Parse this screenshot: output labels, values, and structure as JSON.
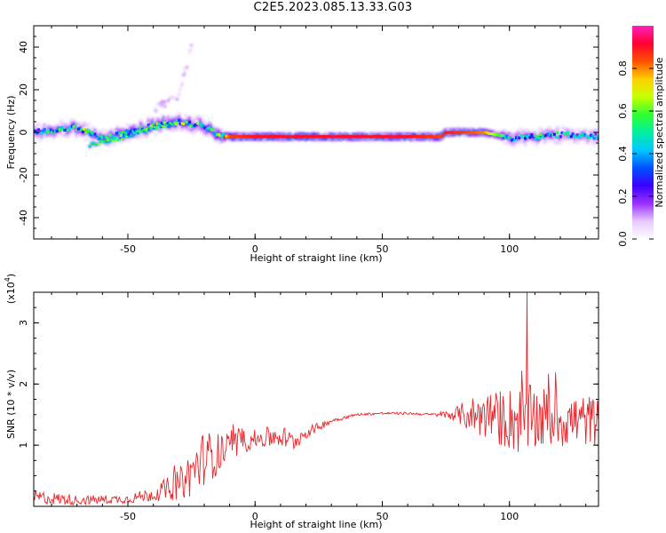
{
  "title": "C2E5.2023.085.13.33.G03",
  "colors": {
    "snr_line": "#e8262b",
    "axis": "#000000",
    "colormap": [
      "#ffffff",
      "#e8c8ff",
      "#9b30ff",
      "#3a00ff",
      "#0050ff",
      "#00c8ff",
      "#00f0a0",
      "#30ff30",
      "#c8ff00",
      "#ffd000",
      "#ff5000",
      "#ff0030",
      "#ff20c0"
    ]
  },
  "chart_data": [
    {
      "id": "spectrogram",
      "type": "heatmap",
      "xlabel": "Height of straight line (km)",
      "ylabel": "Frequency (Hz)",
      "xlim": [
        -87,
        135
      ],
      "ylim": [
        -50,
        50
      ],
      "x_ticks": [
        -50,
        0,
        50,
        100
      ],
      "y_ticks": [
        -40,
        -20,
        0,
        20,
        40
      ],
      "colorbar": {
        "label": "Normalized spectral amplitude",
        "range": [
          0,
          1
        ],
        "ticks": [
          0.0,
          0.2,
          0.4,
          0.6,
          0.8
        ]
      },
      "ridge": {
        "description_points_x": [
          -87,
          -70,
          -60,
          -50,
          -40,
          -30,
          -20,
          -15,
          -10,
          0,
          20,
          40,
          60,
          73,
          75,
          90,
          98,
          100,
          110,
          120,
          135
        ],
        "frequency_y": [
          0,
          2,
          -3,
          0,
          3,
          5,
          3,
          -1,
          -2,
          -2,
          -2,
          -2,
          -2,
          -2,
          0,
          0,
          -2,
          -3,
          -2,
          -1,
          -2
        ],
        "amplitude": [
          0.35,
          0.5,
          0.45,
          0.5,
          0.55,
          0.55,
          0.45,
          0.5,
          0.85,
          0.9,
          0.9,
          0.9,
          0.9,
          0.85,
          0.9,
          0.8,
          0.5,
          0.4,
          0.45,
          0.4,
          0.35
        ]
      },
      "secondary_branch": {
        "x": [
          -65,
          -50,
          -40,
          -30
        ],
        "frequency_y": [
          -6,
          -2,
          2,
          4
        ]
      },
      "faint_branch": {
        "x": [
          -40,
          -30,
          -25
        ],
        "frequency_y": [
          10,
          18,
          40
        ]
      }
    },
    {
      "id": "snr",
      "type": "line",
      "xlabel": "Height of straight line (km)",
      "ylabel": "SNR (10 * v/v)",
      "y_multiplier_label": "(x10",
      "y_multiplier_exp": "4",
      "xlim": [
        -87,
        135
      ],
      "ylim": [
        0,
        3.5
      ],
      "x_ticks": [
        -50,
        0,
        50,
        100
      ],
      "y_ticks": [
        1,
        2,
        3
      ],
      "envelope": {
        "x": [
          -87,
          -70,
          -50,
          -40,
          -30,
          -25,
          -20,
          -15,
          -10,
          -5,
          0,
          10,
          15,
          20,
          30,
          40,
          50,
          60,
          70,
          78,
          85,
          95,
          105,
          115,
          125,
          135
        ],
        "mean": [
          0.15,
          0.1,
          0.12,
          0.2,
          0.35,
          0.55,
          0.8,
          0.85,
          0.95,
          1.05,
          1.1,
          1.15,
          1.05,
          1.2,
          1.4,
          1.5,
          1.52,
          1.52,
          1.5,
          1.5,
          1.5,
          1.45,
          1.4,
          1.45,
          1.4,
          1.4
        ],
        "noise": [
          0.12,
          0.08,
          0.07,
          0.12,
          0.25,
          0.4,
          0.45,
          0.35,
          0.25,
          0.2,
          0.15,
          0.2,
          0.15,
          0.1,
          0.04,
          0.02,
          0.02,
          0.02,
          0.02,
          0.1,
          0.3,
          0.45,
          0.6,
          0.5,
          0.45,
          0.4
        ]
      },
      "peak": {
        "x": 107,
        "y": 3.5
      }
    }
  ]
}
